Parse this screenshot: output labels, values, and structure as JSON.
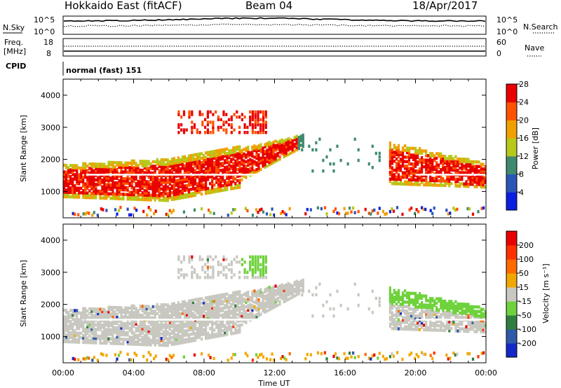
{
  "header": {
    "radar": "Hokkaido East (fitACF)",
    "beam": "Beam 04",
    "date": "18/Apr/2017"
  },
  "panels": {
    "nsky_label": "N.Sky",
    "nsearch_label": "N.Search",
    "noise_ticks_left": [
      "10^5",
      "10^0"
    ],
    "noise_ticks_right": [
      "10^5",
      "10^0"
    ],
    "freq_label_line1": "Freq.",
    "freq_label_line2": "[MHz]",
    "freq_ticks": [
      "18",
      "8"
    ],
    "nave_label": "Nave",
    "nave_ticks": [
      "60",
      "0"
    ],
    "cpid_label": "CPID",
    "cpid_value": "normal (fast) 151"
  },
  "chart_data": [
    {
      "type": "heatmap",
      "parameter": "Power",
      "ylabel": "Slant Range [km]",
      "colorbar_label": "Power [dB]",
      "colorbar_ticks": [
        4,
        8,
        12,
        16,
        20,
        24,
        28
      ],
      "colorbar_colors": [
        "#0a1fe0",
        "#2c55b8",
        "#3f8a6e",
        "#b6c81a",
        "#f0a000",
        "#ff5200",
        "#e80000"
      ],
      "x_ticks": [
        "00:00",
        "04:00",
        "08:00",
        "12:00",
        "16:00",
        "20:00",
        "00:00"
      ],
      "y_ticks": [
        1000,
        2000,
        3000,
        4000
      ],
      "y_range_km": [
        180,
        4500
      ],
      "x_range_hours": [
        0,
        24
      ]
    },
    {
      "type": "heatmap",
      "parameter": "Velocity",
      "ylabel": "Slant Range [km]",
      "xlabel": "Time UT",
      "colorbar_label": "Velocity [m s⁻¹]",
      "colorbar_ticks": [
        "200",
        "100",
        "50",
        "15",
        "-15",
        "-50",
        "-100",
        "-200"
      ],
      "colorbar_colors": [
        "#1428c8",
        "#2e5aa8",
        "#2f7e40",
        "#6ed23c",
        "#c8c8c0",
        "#f0a800",
        "#ff6a00",
        "#ff3000",
        "#e80000"
      ],
      "x_ticks": [
        "00:00",
        "04:00",
        "08:00",
        "12:00",
        "16:00",
        "20:00",
        "00:00"
      ],
      "y_ticks": [
        1000,
        2000,
        3000,
        4000
      ],
      "y_range_km": [
        180,
        4500
      ],
      "x_range_hours": [
        0,
        24
      ]
    }
  ]
}
